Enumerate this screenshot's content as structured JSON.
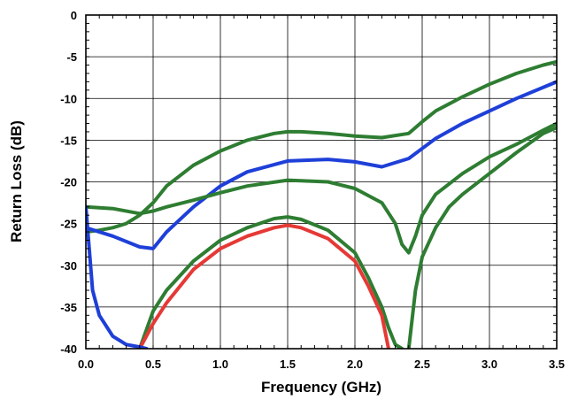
{
  "chart_data": {
    "type": "line",
    "xlabel": "Frequency (GHz)",
    "ylabel": "Return Loss (dB)",
    "xlim": [
      0,
      3.5
    ],
    "ylim": [
      -40,
      0
    ],
    "x_ticks": [
      "0.0",
      "0.5",
      "1.0",
      "1.5",
      "2.0",
      "2.5",
      "3.0",
      "3.5"
    ],
    "y_ticks": [
      "0",
      "-5",
      "-10",
      "-15",
      "-20",
      "-25",
      "-30",
      "-35",
      "-40"
    ],
    "grid": true,
    "legend": "none",
    "series": [
      {
        "color": "#2e7d32",
        "x": [
          0,
          0.1,
          0.2,
          0.3,
          0.4,
          0.5,
          0.6,
          0.8,
          1.0,
          1.2,
          1.4,
          1.5,
          1.6,
          1.8,
          2.0,
          2.2,
          2.4,
          2.5,
          2.6,
          2.8,
          3.0,
          3.2,
          3.4,
          3.5
        ],
        "y": [
          -26.0,
          -25.8,
          -25.5,
          -25.0,
          -24.0,
          -22.5,
          -20.5,
          -18.0,
          -16.3,
          -15.0,
          -14.2,
          -14.0,
          -14.0,
          -14.2,
          -14.5,
          -14.7,
          -14.2,
          -12.8,
          -11.5,
          -9.8,
          -8.3,
          -7.0,
          -6.0,
          -5.6
        ]
      },
      {
        "color": "#1e3fd8",
        "x": [
          0,
          0.2,
          0.4,
          0.5,
          0.6,
          0.8,
          1.0,
          1.2,
          1.5,
          1.8,
          2.0,
          2.2,
          2.4,
          2.5,
          2.6,
          2.8,
          3.0,
          3.2,
          3.5
        ],
        "y": [
          -25.5,
          -26.5,
          -27.8,
          -28.0,
          -26.0,
          -23.0,
          -20.5,
          -18.8,
          -17.5,
          -17.3,
          -17.6,
          -18.2,
          -17.2,
          -16.0,
          -14.8,
          -13.0,
          -11.5,
          -10.0,
          -8.0
        ]
      },
      {
        "color": "#2e7d32",
        "x": [
          0,
          0.2,
          0.4,
          0.5,
          0.6,
          0.8,
          1.0,
          1.2,
          1.5,
          1.8,
          2.0,
          2.2,
          2.3,
          2.35,
          2.4,
          2.45,
          2.5,
          2.6,
          2.8,
          3.0,
          3.2,
          3.4,
          3.5
        ],
        "y": [
          -23.0,
          -23.2,
          -23.8,
          -23.5,
          -23.0,
          -22.2,
          -21.3,
          -20.5,
          -19.8,
          -20.0,
          -20.8,
          -22.5,
          -25.0,
          -27.5,
          -28.5,
          -26.5,
          -24.0,
          -21.5,
          -19.0,
          -17.0,
          -15.5,
          -13.8,
          -13.0
        ]
      },
      {
        "color": "#2e7d32",
        "x": [
          0.4,
          0.5,
          0.6,
          0.8,
          1.0,
          1.2,
          1.4,
          1.5,
          1.6,
          1.8,
          2.0,
          2.1,
          2.2,
          2.25,
          2.3,
          2.35
        ],
        "y": [
          -40.0,
          -35.5,
          -33.0,
          -29.5,
          -27.0,
          -25.5,
          -24.4,
          -24.2,
          -24.5,
          -25.8,
          -28.5,
          -31.5,
          -35.0,
          -37.5,
          -39.5,
          -40.0
        ]
      },
      {
        "color": "#e53935",
        "x": [
          0.4,
          0.5,
          0.6,
          0.8,
          1.0,
          1.2,
          1.4,
          1.5,
          1.6,
          1.8,
          2.0,
          2.1,
          2.2,
          2.25
        ],
        "y": [
          -40.0,
          -37.0,
          -34.5,
          -30.5,
          -28.0,
          -26.5,
          -25.5,
          -25.2,
          -25.5,
          -26.8,
          -29.5,
          -32.5,
          -36.0,
          -40.0
        ]
      },
      {
        "color": "#2e7d32",
        "x": [
          2.4,
          2.45,
          2.5,
          2.6,
          2.7,
          2.8,
          3.0,
          3.2,
          3.4,
          3.5
        ],
        "y": [
          -40.0,
          -33.0,
          -29.0,
          -25.5,
          -23.0,
          -21.5,
          -19.0,
          -16.5,
          -14.2,
          -13.5
        ]
      },
      {
        "color": "#1e3fd8",
        "x": [
          0,
          0.05,
          0.1,
          0.2,
          0.3,
          0.4,
          0.45
        ],
        "y": [
          -23.0,
          -33.0,
          -36.0,
          -38.5,
          -39.5,
          -39.8,
          -40.0
        ]
      }
    ]
  }
}
